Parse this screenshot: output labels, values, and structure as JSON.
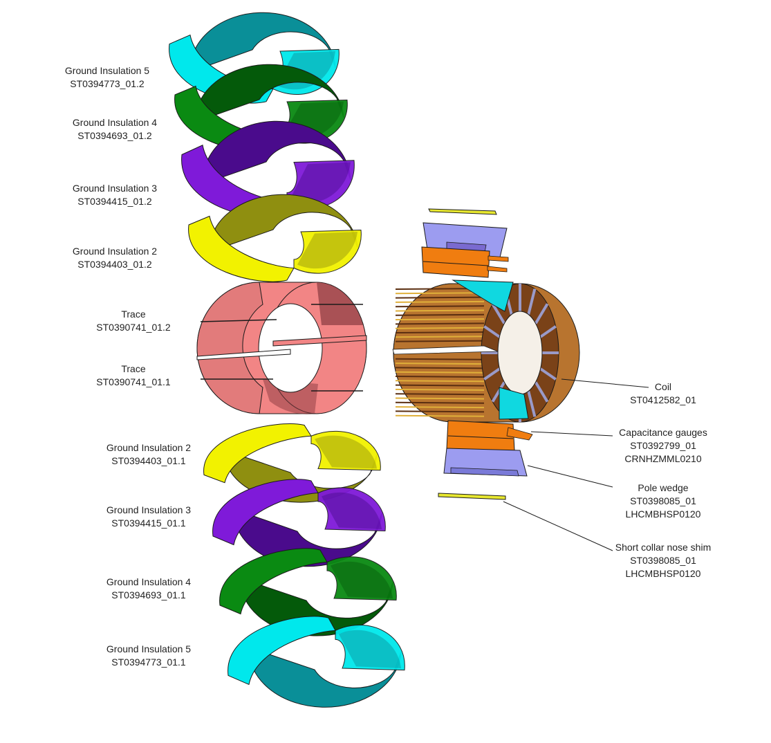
{
  "parts": [
    {
      "id": "gi5_top",
      "name": "Ground Insulation 5",
      "code": "ST0394773_01.2",
      "color": "#00e8ec",
      "dark": "#0a8f98"
    },
    {
      "id": "gi4_top",
      "name": "Ground Insulation 4",
      "code": "ST0394693_01.2",
      "color": "#0a8a12",
      "dark": "#045a0a"
    },
    {
      "id": "gi3_top",
      "name": "Ground Insulation 3",
      "code": "ST0394415_01.2",
      "color": "#7f1ad9",
      "dark": "#4a0b8c"
    },
    {
      "id": "gi2_top",
      "name": "Ground Insulation 2",
      "code": "ST0394403_01.2",
      "color": "#f2f200",
      "dark": "#8f8f10"
    },
    {
      "id": "trace_top",
      "name": "Trace",
      "code": "ST0390741_01.2",
      "color": "#f28585",
      "dark": "#8a3a40"
    },
    {
      "id": "trace_bot",
      "name": "Trace",
      "code": "ST0390741_01.1",
      "color": "#f28585",
      "dark": "#8a3a40"
    },
    {
      "id": "gi2_bot",
      "name": "Ground Insulation 2",
      "code": "ST0394403_01.1",
      "color": "#f2f200",
      "dark": "#8f8f10"
    },
    {
      "id": "gi3_bot",
      "name": "Ground Insulation 3",
      "code": "ST0394415_01.1",
      "color": "#7f1ad9",
      "dark": "#4a0b8c"
    },
    {
      "id": "gi4_bot",
      "name": "Ground Insulation 4",
      "code": "ST0394693_01.1",
      "color": "#0a8a12",
      "dark": "#045a0a"
    },
    {
      "id": "gi5_bot",
      "name": "Ground Insulation 5",
      "code": "ST0394773_01.1",
      "color": "#00e8ec",
      "dark": "#0a8f98"
    }
  ],
  "callouts": {
    "coil": {
      "lines": [
        "Coil",
        "ST0412582_01"
      ]
    },
    "capacitance_gauges": {
      "lines": [
        "Capacitance gauges",
        "ST0392799_01",
        "CRNHZMML0210"
      ]
    },
    "pole_wedge": {
      "lines": [
        "Pole wedge",
        "ST0398085_01",
        "LHCMBHSP0120"
      ]
    },
    "short_collar_nose_shim": {
      "lines": [
        "Short collar nose shim",
        "ST0398085_01",
        "LHCMBHSP0120"
      ]
    }
  },
  "colors": {
    "coil_copper": "#b8742f",
    "coil_dark": "#5a2e10",
    "coil_gold": "#e0b03a",
    "gauge_orange": "#f07d10",
    "wedge_lavender": "#9c9cf0",
    "shim_yellow": "#e8e830",
    "pole_cyan": "#10d8e0",
    "outline": "#1a1a1a"
  }
}
